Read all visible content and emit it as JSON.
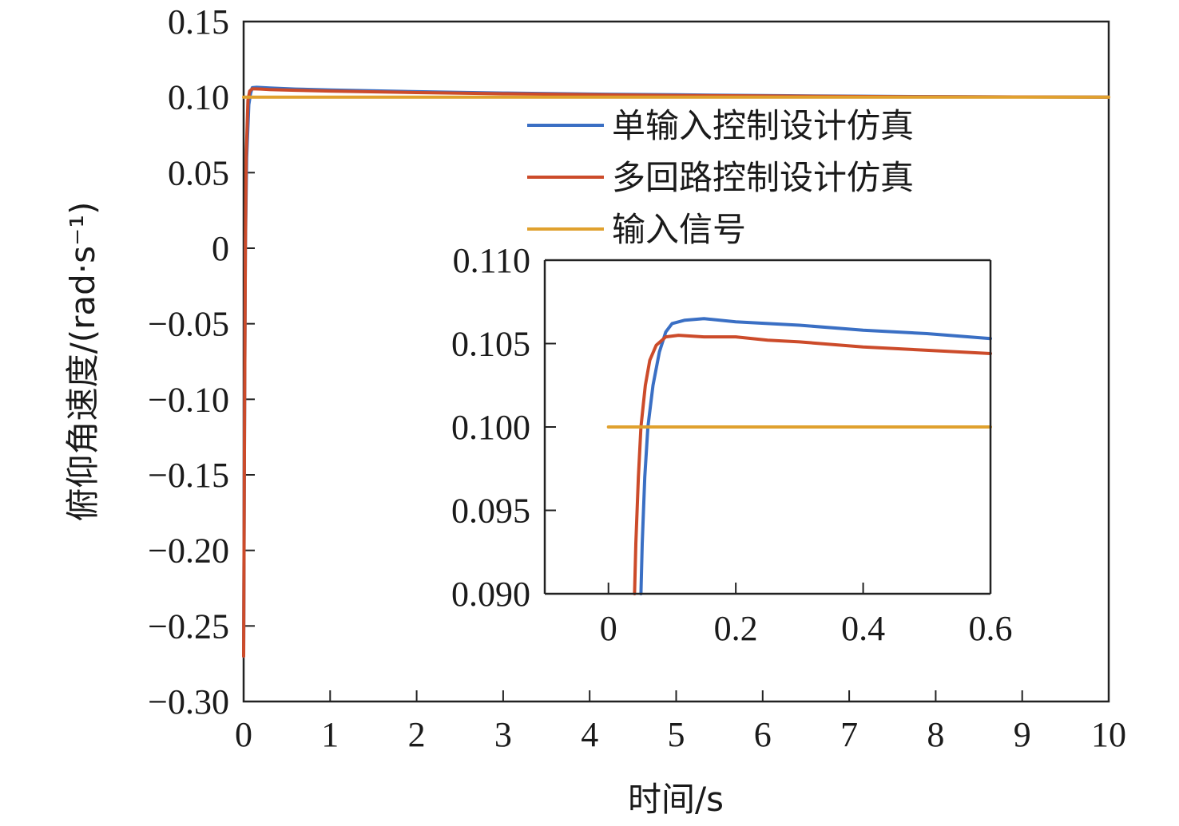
{
  "chart_data": [
    {
      "type": "line",
      "title": "",
      "xlabel": "时间/s",
      "ylabel": "俯仰角速度/(rad·s⁻¹)",
      "xlim": [
        0,
        10
      ],
      "ylim": [
        -0.3,
        0.15
      ],
      "xticks": [
        "0",
        "1",
        "2",
        "3",
        "4",
        "5",
        "6",
        "7",
        "8",
        "9",
        "10"
      ],
      "xtick_values": [
        0,
        1,
        2,
        3,
        4,
        5,
        6,
        7,
        8,
        9,
        10
      ],
      "yticks": [
        "0.15",
        "0.10",
        "0.05",
        "0",
        "−0.05",
        "−0.10",
        "−0.15",
        "−0.20",
        "−0.25",
        "−0.30"
      ],
      "ytick_values": [
        0.15,
        0.1,
        0.05,
        0,
        -0.05,
        -0.1,
        -0.15,
        -0.2,
        -0.25,
        -0.3
      ],
      "grid": false,
      "legend_position": "upper-right",
      "series": [
        {
          "name": "单输入控制设计仿真",
          "color": "#3a6fc4",
          "points": [
            [
              0,
              -0.27
            ],
            [
              0.01,
              -0.12
            ],
            [
              0.02,
              0.0
            ],
            [
              0.035,
              0.06
            ],
            [
              0.06,
              0.095
            ],
            [
              0.08,
              0.1025
            ],
            [
              0.1,
              0.1062
            ],
            [
              0.15,
              0.1065
            ],
            [
              0.3,
              0.106
            ],
            [
              0.6,
              0.1053
            ],
            [
              1,
              0.1047
            ],
            [
              2,
              0.1036
            ],
            [
              3,
              0.1027
            ],
            [
              4,
              0.102
            ],
            [
              5,
              0.1015
            ],
            [
              6,
              0.101
            ],
            [
              7,
              0.1006
            ],
            [
              8,
              0.1003
            ],
            [
              9,
              0.1001
            ],
            [
              10,
              0.1
            ]
          ]
        },
        {
          "name": "多回路控制设计仿真",
          "color": "#cc4b2a",
          "points": [
            [
              0,
              -0.27
            ],
            [
              0.01,
              -0.12
            ],
            [
              0.02,
              0.0
            ],
            [
              0.03,
              0.06
            ],
            [
              0.05,
              0.098
            ],
            [
              0.07,
              0.104
            ],
            [
              0.1,
              0.1055
            ],
            [
              0.2,
              0.1053
            ],
            [
              0.3,
              0.105
            ],
            [
              0.6,
              0.1045
            ],
            [
              1,
              0.104
            ],
            [
              2,
              0.103
            ],
            [
              3,
              0.1022
            ],
            [
              4,
              0.1016
            ],
            [
              5,
              0.1011
            ],
            [
              6,
              0.1007
            ],
            [
              7,
              0.1004
            ],
            [
              8,
              0.1002
            ],
            [
              9,
              0.1001
            ],
            [
              10,
              0.1
            ]
          ]
        },
        {
          "name": "输入信号",
          "color": "#e0a12e",
          "points": [
            [
              0,
              0.1
            ],
            [
              10,
              0.1
            ]
          ]
        }
      ]
    },
    {
      "type": "line",
      "title": "",
      "xlabel": "",
      "ylabel": "",
      "xlim": [
        -0.1,
        0.6
      ],
      "ylim": [
        0.09,
        0.11
      ],
      "xticks": [
        "0",
        "0.2",
        "0.4",
        "0.6"
      ],
      "xtick_values": [
        0,
        0.2,
        0.4,
        0.6
      ],
      "yticks": [
        "0.110",
        "0.105",
        "0.100",
        "0.095",
        "0.090"
      ],
      "ytick_values": [
        0.11,
        0.105,
        0.1,
        0.095,
        0.09
      ],
      "grid": false,
      "series": [
        {
          "color": "#3a6fc4",
          "points": [
            [
              0.051,
              0.09
            ],
            [
              0.053,
              0.093
            ],
            [
              0.057,
              0.097
            ],
            [
              0.062,
              0.1
            ],
            [
              0.07,
              0.1025
            ],
            [
              0.08,
              0.1045
            ],
            [
              0.09,
              0.1057
            ],
            [
              0.1,
              0.1062
            ],
            [
              0.12,
              0.1064
            ],
            [
              0.15,
              0.1065
            ],
            [
              0.2,
              0.1063
            ],
            [
              0.3,
              0.1061
            ],
            [
              0.4,
              0.1058
            ],
            [
              0.5,
              0.1056
            ],
            [
              0.6,
              0.1053
            ]
          ]
        },
        {
          "color": "#cc4b2a",
          "points": [
            [
              0.041,
              0.09
            ],
            [
              0.043,
              0.093
            ],
            [
              0.047,
              0.097
            ],
            [
              0.051,
              0.1
            ],
            [
              0.058,
              0.1025
            ],
            [
              0.065,
              0.104
            ],
            [
              0.075,
              0.1049
            ],
            [
              0.09,
              0.1054
            ],
            [
              0.11,
              0.1055
            ],
            [
              0.15,
              0.1054
            ],
            [
              0.2,
              0.1054
            ],
            [
              0.25,
              0.1052
            ],
            [
              0.3,
              0.1051
            ],
            [
              0.4,
              0.1048
            ],
            [
              0.5,
              0.1046
            ],
            [
              0.6,
              0.1044
            ]
          ]
        },
        {
          "color": "#e0a12e",
          "points": [
            [
              0,
              0.1
            ],
            [
              0.6,
              0.1
            ]
          ]
        }
      ]
    }
  ]
}
